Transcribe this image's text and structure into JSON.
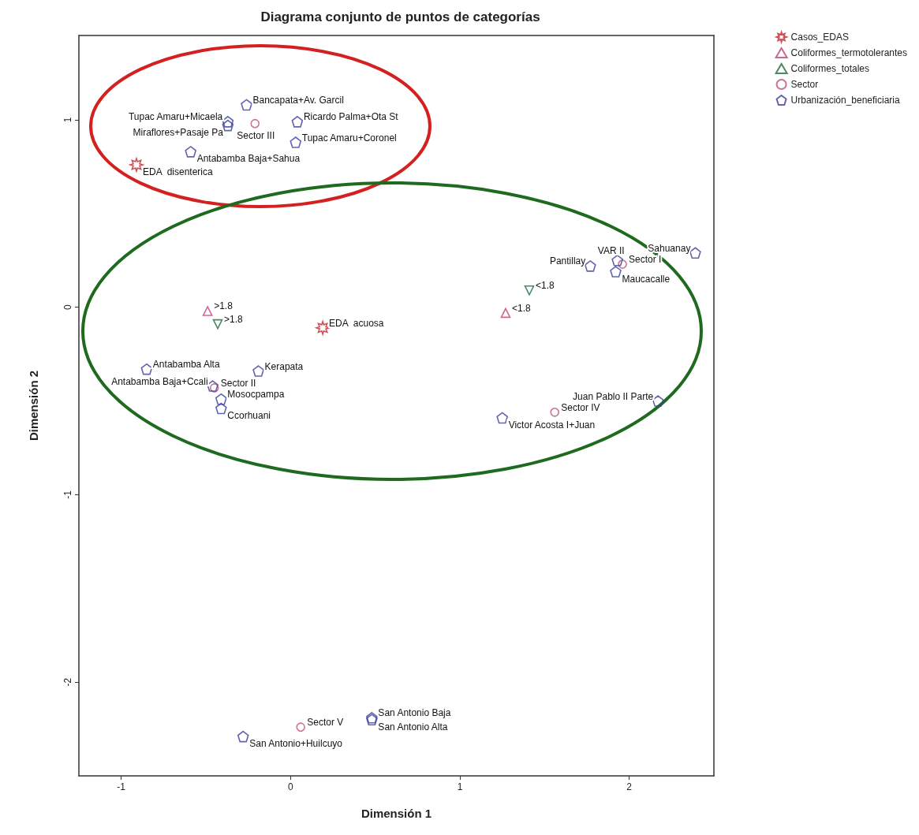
{
  "chart_data": {
    "type": "scatter",
    "title": "Diagrama conjunto de puntos de categorías",
    "xlabel": "Dimensión 1",
    "ylabel": "Dimensión 2",
    "xlim": [
      -1.25,
      2.5
    ],
    "ylim": [
      -2.5,
      1.45
    ],
    "xticks": [
      -1,
      0,
      1,
      2
    ],
    "yticks": [
      -2,
      -1,
      0,
      1
    ],
    "grid": false,
    "legend": "top right",
    "series": [
      {
        "name": "Casos_EDAS",
        "color": "#c0282d",
        "marker": "star",
        "x": [
          -0.91,
          0.19
        ],
        "values": [
          0.76,
          -0.11
        ]
      },
      {
        "name": "Coliformes_termotolerantes",
        "color": "#c0407a",
        "marker": "triangle",
        "x": [
          -0.49,
          1.27
        ],
        "values": [
          -0.02,
          -0.03
        ]
      },
      {
        "name": "Coliformes_totales",
        "color": "#1e6b3a",
        "marker": "triangle-down",
        "x": [
          -0.43,
          1.41
        ],
        "values": [
          -0.09,
          0.09
        ]
      },
      {
        "name": "Sector",
        "color": "#c05080",
        "marker": "circle",
        "x": [
          -0.21,
          -0.45,
          1.96,
          1.56,
          0.06
        ],
        "values": [
          0.98,
          -0.43,
          0.23,
          -0.56,
          -2.24
        ]
      },
      {
        "name": "Urbanización_beneficiaria",
        "color": "#3a3f9a",
        "x": [
          -0.26,
          -0.37,
          -0.37,
          0.04,
          0.03,
          -0.59,
          1.77,
          1.93,
          1.92,
          2.39,
          2.17,
          1.25,
          -0.85,
          -0.19,
          -0.46,
          -0.41,
          -0.41,
          -0.28,
          0.48,
          0.48
        ],
        "values": [
          1.08,
          0.99,
          0.97,
          0.99,
          0.88,
          0.83,
          0.22,
          0.25,
          0.19,
          0.29,
          -0.5,
          -0.59,
          -0.33,
          -0.34,
          -0.42,
          -0.49,
          -0.54,
          -2.29,
          -2.19,
          -2.2
        ]
      }
    ],
    "annotations": [
      {
        "text": "EDA  disenterica",
        "x": -0.91,
        "y": 0.76
      },
      {
        "text": "EDA  acuosa",
        "x": 0.19,
        "y": -0.11
      },
      {
        "text": ">1.8",
        "x": -0.49,
        "y": -0.02
      },
      {
        "text": "<1.8",
        "x": 1.27,
        "y": -0.03
      },
      {
        "text": ">1.8",
        "x": -0.43,
        "y": -0.09
      },
      {
        "text": "<1.8",
        "x": 1.41,
        "y": 0.09
      },
      {
        "text": "Sector III",
        "x": -0.21,
        "y": 0.98
      },
      {
        "text": "Sector II",
        "x": -0.45,
        "y": -0.43
      },
      {
        "text": "Sector I",
        "x": 1.96,
        "y": 0.23
      },
      {
        "text": "Sector IV",
        "x": 1.56,
        "y": -0.56
      },
      {
        "text": "Sector V",
        "x": 0.06,
        "y": -2.24
      },
      {
        "text": "Bancapata+Av. Garcil",
        "x": -0.26,
        "y": 1.08
      },
      {
        "text": "Tupac Amaru+Micaela",
        "x": -0.37,
        "y": 0.99
      },
      {
        "text": "Miraflores+Pasaje Pa",
        "x": -0.37,
        "y": 0.97
      },
      {
        "text": "Ricardo Palma+Ota St",
        "x": 0.04,
        "y": 0.99
      },
      {
        "text": "Tupac Amaru+Coronel",
        "x": 0.03,
        "y": 0.88
      },
      {
        "text": "Antabamba Baja+Sahua",
        "x": -0.59,
        "y": 0.83
      },
      {
        "text": "Pantillay",
        "x": 1.77,
        "y": 0.22
      },
      {
        "text": "VAR II",
        "x": 1.93,
        "y": 0.25
      },
      {
        "text": "Maucacalle",
        "x": 1.92,
        "y": 0.19
      },
      {
        "text": "Sahuanay",
        "x": 2.39,
        "y": 0.29
      },
      {
        "text": "Juan Pablo II Parte",
        "x": 2.17,
        "y": -0.5
      },
      {
        "text": "Victor Acosta I+Juan",
        "x": 1.25,
        "y": -0.59
      },
      {
        "text": "Antabamba Alta",
        "x": -0.85,
        "y": -0.33
      },
      {
        "text": "Kerapata",
        "x": -0.19,
        "y": -0.34
      },
      {
        "text": "Antabamba Baja+Ccali",
        "x": -0.46,
        "y": -0.42
      },
      {
        "text": "Mosocpampa",
        "x": -0.41,
        "y": -0.49
      },
      {
        "text": "Ccorhuani",
        "x": -0.41,
        "y": -0.54
      },
      {
        "text": "San Antonio+Huilcuyo",
        "x": -0.28,
        "y": -2.29
      },
      {
        "text": "San Antonio Baja",
        "x": 0.48,
        "y": -2.19
      },
      {
        "text": "San Antonio Alta",
        "x": 0.48,
        "y": -2.2
      }
    ]
  }
}
